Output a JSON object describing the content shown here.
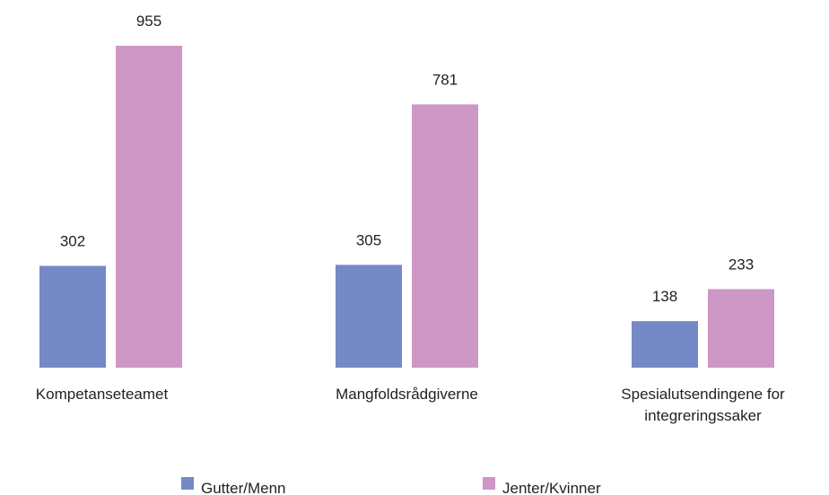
{
  "chart_data": {
    "type": "bar",
    "categories": [
      "Kompetanseteamet",
      "Mangfoldsrådgiverne",
      "Spesialutsendingene for integreringssaker"
    ],
    "series": [
      {
        "name": "Gutter/Menn",
        "color": "#7589c6",
        "values": [
          302,
          305,
          138
        ]
      },
      {
        "name": "Jenter/Kvinner",
        "color": "#cd97c6",
        "values": [
          955,
          781,
          233
        ]
      }
    ]
  }
}
